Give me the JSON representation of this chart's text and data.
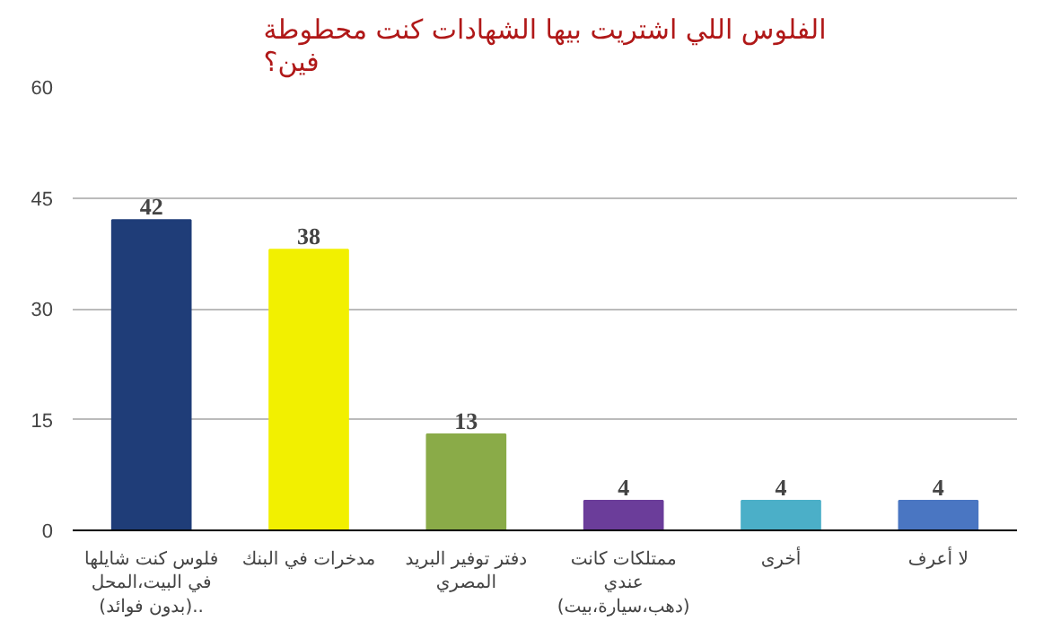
{
  "chart_data": {
    "type": "bar",
    "title": "الفلوس اللي اشتريت بيها الشهادات كنت محطوطة\nفين؟",
    "categories": [
      "فلوس كنت شايلها\nفي البيت،المحل\n(بدون فوائد)..",
      "مدخرات في البنك",
      "دفتر توفير البريد\nالمصري",
      "ممتلكات كانت\nعندي\n(دهب،سيارة،بيت)",
      "أخرى",
      "لا أعرف"
    ],
    "values": [
      42,
      38,
      13,
      4,
      4,
      4
    ],
    "colors": [
      "#1f3d78",
      "#f2f000",
      "#8aab48",
      "#6b3d9a",
      "#4bafc8",
      "#4a76c2"
    ],
    "ylim": [
      0,
      60
    ],
    "yticks": [
      0,
      15,
      30,
      45,
      60
    ],
    "grid": "y",
    "data_labels": true
  }
}
